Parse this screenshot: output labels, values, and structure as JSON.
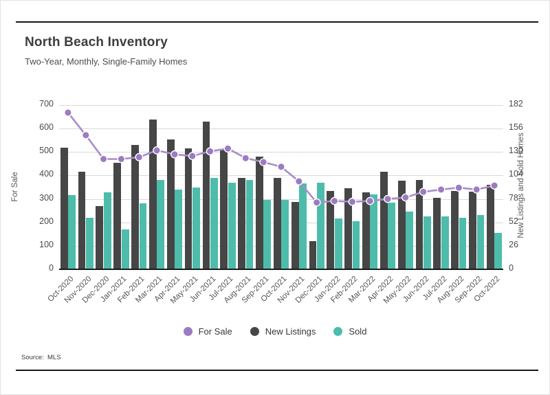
{
  "header": {
    "title": "North Beach Inventory",
    "subtitle": "Two-Year, Monthly, Single-Family Homes"
  },
  "footer": {
    "source": "Source:  MLS"
  },
  "chart_data": {
    "type": "bar-line-combo",
    "title": "North Beach Inventory",
    "subtitle": "Two-Year, Monthly, Single-Family Homes",
    "grid": "horizontal-on",
    "legend_position": "bottom-center",
    "categories": [
      "Oct-2020",
      "Nov-2020",
      "Dec-2020",
      "Jan-2021",
      "Feb-2021",
      "Mar-2021",
      "Apr-2021",
      "May-2021",
      "Jun-2021",
      "Jul-2021",
      "Aug-2021",
      "Sep-2021",
      "Oct-2021",
      "Nov-2021",
      "Dec-2021",
      "Jan-2022",
      "Feb-2022",
      "Mar-2022",
      "Apr-2022",
      "May-2022",
      "Jun-2022",
      "Jul-2022",
      "Aug-2022",
      "Sep-2022",
      "Oct-2022"
    ],
    "series": [
      {
        "name": "For Sale",
        "type": "line",
        "axis": "left",
        "color": "#a98cc9",
        "point_color": "#9d7bc2",
        "values": [
          668,
          572,
          470,
          470,
          478,
          507,
          490,
          483,
          503,
          515,
          474,
          457,
          437,
          375,
          285,
          291,
          288,
          291,
          300,
          306,
          330,
          340,
          348,
          340,
          357
        ]
      },
      {
        "name": "New Listings",
        "type": "bar",
        "axis": "right",
        "color": "#464646",
        "values": [
          135,
          108,
          70,
          118,
          138,
          166,
          144,
          134,
          164,
          133,
          101,
          125,
          101,
          75,
          31,
          87,
          90,
          85,
          108,
          98,
          99,
          79,
          87,
          86,
          94
        ]
      },
      {
        "name": "Sold",
        "type": "bar",
        "axis": "right",
        "color": "#4dbcab",
        "values": [
          82,
          57,
          85,
          44,
          73,
          99,
          88,
          91,
          101,
          96,
          99,
          77,
          77,
          95,
          96,
          56,
          53,
          83,
          74,
          64,
          59,
          59,
          57,
          60,
          40
        ]
      }
    ],
    "left_axis": {
      "label": "For Sale",
      "min": 0,
      "max": 700,
      "ticks": [
        0,
        100,
        200,
        300,
        400,
        500,
        600,
        700
      ]
    },
    "right_axis": {
      "label": "New Listings and Sold Homes",
      "min": 0,
      "max": 182,
      "ticks": [
        0,
        26,
        52,
        78,
        104,
        130,
        156,
        182
      ]
    },
    "legend": [
      "For Sale",
      "New Listings",
      "Sold"
    ],
    "colors": {
      "gridline": "#d9d9d9",
      "axis_line": "#1b1b1b",
      "rule": "#161616"
    }
  }
}
